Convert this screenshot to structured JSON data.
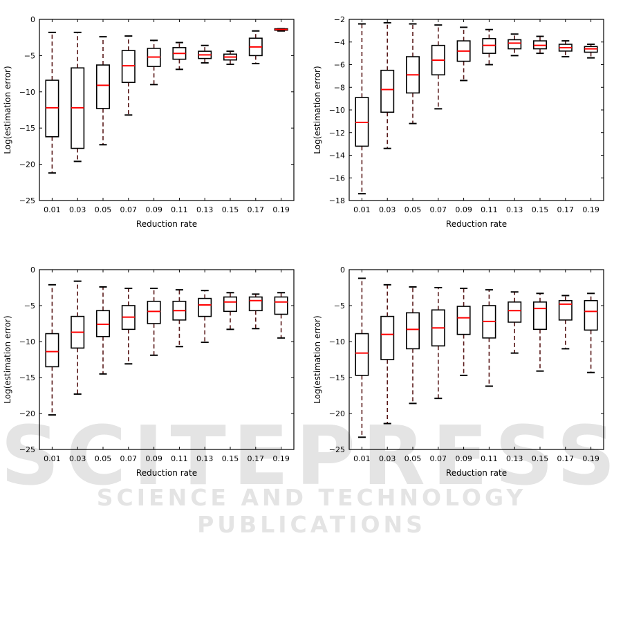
{
  "watermark": {
    "main": "SCITEPRESS",
    "sub": "SCIENCE AND TECHNOLOGY PUBLICATIONS"
  },
  "colors": {
    "box": "#000000",
    "median": "#ff0000",
    "whisker": "#5a1a1a"
  },
  "chart_data": [
    {
      "type": "box",
      "xlabel": "Reduction rate",
      "ylabel": "Log(estimation error)",
      "ylim": [
        -25,
        0
      ],
      "yticks": [
        0,
        -5,
        -10,
        -15,
        -20,
        -25
      ],
      "categories": [
        "0.01",
        "0.03",
        "0.05",
        "0.07",
        "0.09",
        "0.11",
        "0.13",
        "0.15",
        "0.17",
        "0.19"
      ],
      "boxes": [
        {
          "min": -21.2,
          "q1": -16.2,
          "median": -12.2,
          "q3": -8.4,
          "max": -1.8
        },
        {
          "min": -19.6,
          "q1": -17.8,
          "median": -12.2,
          "q3": -6.7,
          "max": -1.8
        },
        {
          "min": -17.3,
          "q1": -12.3,
          "median": -9.1,
          "q3": -6.3,
          "max": -2.4
        },
        {
          "min": -13.2,
          "q1": -8.7,
          "median": -6.4,
          "q3": -4.3,
          "max": -2.3
        },
        {
          "min": -9.0,
          "q1": -6.5,
          "median": -5.2,
          "q3": -4.0,
          "max": -2.9
        },
        {
          "min": -6.9,
          "q1": -5.5,
          "median": -4.7,
          "q3": -3.9,
          "max": -3.2
        },
        {
          "min": -6.0,
          "q1": -5.4,
          "median": -4.9,
          "q3": -4.4,
          "max": -3.6
        },
        {
          "min": -6.2,
          "q1": -5.6,
          "median": -5.2,
          "q3": -4.8,
          "max": -4.4
        },
        {
          "min": -6.1,
          "q1": -5.0,
          "median": -3.8,
          "q3": -2.6,
          "max": -1.6
        },
        {
          "min": -1.6,
          "q1": -1.5,
          "median": -1.4,
          "q3": -1.3,
          "max": -1.3
        }
      ]
    },
    {
      "type": "box",
      "xlabel": "Reduction rate",
      "ylabel": "Log(estimation error)",
      "ylim": [
        -18,
        -2
      ],
      "yticks": [
        -2,
        -4,
        -6,
        -8,
        -10,
        -12,
        -14,
        -16,
        -18
      ],
      "categories": [
        "0.01",
        "0.03",
        "0.05",
        "0.07",
        "0.09",
        "0.11",
        "0.13",
        "0.15",
        "0.17",
        "0.19"
      ],
      "boxes": [
        {
          "min": -17.4,
          "q1": -13.2,
          "median": -11.1,
          "q3": -8.9,
          "max": -2.4
        },
        {
          "min": -13.4,
          "q1": -10.2,
          "median": -8.2,
          "q3": -6.5,
          "max": -2.3
        },
        {
          "min": -11.2,
          "q1": -8.5,
          "median": -6.9,
          "q3": -5.3,
          "max": -2.4
        },
        {
          "min": -9.9,
          "q1": -6.9,
          "median": -5.6,
          "q3": -4.3,
          "max": -2.5
        },
        {
          "min": -7.4,
          "q1": -5.7,
          "median": -4.8,
          "q3": -3.9,
          "max": -2.7
        },
        {
          "min": -6.0,
          "q1": -5.0,
          "median": -4.3,
          "q3": -3.7,
          "max": -2.9
        },
        {
          "min": -5.2,
          "q1": -4.6,
          "median": -4.1,
          "q3": -3.8,
          "max": -3.3
        },
        {
          "min": -5.0,
          "q1": -4.6,
          "median": -4.3,
          "q3": -3.9,
          "max": -3.5
        },
        {
          "min": -5.3,
          "q1": -4.8,
          "median": -4.5,
          "q3": -4.2,
          "max": -3.9
        },
        {
          "min": -5.4,
          "q1": -4.9,
          "median": -4.6,
          "q3": -4.4,
          "max": -4.2
        }
      ]
    },
    {
      "type": "box",
      "xlabel": "Reduction rate",
      "ylabel": "Log(estimation error)",
      "ylim": [
        -25,
        0
      ],
      "yticks": [
        0,
        -5,
        -10,
        -15,
        -20,
        -25
      ],
      "categories": [
        "0.01",
        "0.03",
        "0.05",
        "0.07",
        "0.09",
        "0.11",
        "0.13",
        "0.15",
        "0.17",
        "0.19"
      ],
      "boxes": [
        {
          "min": -20.2,
          "q1": -13.5,
          "median": -11.4,
          "q3": -8.9,
          "max": -2.1
        },
        {
          "min": -17.3,
          "q1": -10.9,
          "median": -8.7,
          "q3": -6.5,
          "max": -1.6
        },
        {
          "min": -14.5,
          "q1": -9.3,
          "median": -7.6,
          "q3": -5.7,
          "max": -2.4
        },
        {
          "min": -13.1,
          "q1": -8.3,
          "median": -6.6,
          "q3": -5.0,
          "max": -2.6
        },
        {
          "min": -11.9,
          "q1": -7.5,
          "median": -5.8,
          "q3": -4.4,
          "max": -2.6
        },
        {
          "min": -10.7,
          "q1": -7.0,
          "median": -5.7,
          "q3": -4.4,
          "max": -2.8
        },
        {
          "min": -10.1,
          "q1": -6.5,
          "median": -4.9,
          "q3": -4.0,
          "max": -2.9
        },
        {
          "min": -8.3,
          "q1": -5.8,
          "median": -4.5,
          "q3": -3.8,
          "max": -3.2
        },
        {
          "min": -8.2,
          "q1": -5.7,
          "median": -4.3,
          "q3": -3.8,
          "max": -3.4
        },
        {
          "min": -9.5,
          "q1": -6.2,
          "median": -4.5,
          "q3": -3.8,
          "max": -3.2
        }
      ]
    },
    {
      "type": "box",
      "xlabel": "Reduction rate",
      "ylabel": "Log(estimation error)",
      "ylim": [
        -25,
        0
      ],
      "yticks": [
        0,
        -5,
        -10,
        -15,
        -20,
        -25
      ],
      "categories": [
        "0.01",
        "0.03",
        "0.05",
        "0.07",
        "0.09",
        "0.11",
        "0.13",
        "0.15",
        "0.17",
        "0.19"
      ],
      "boxes": [
        {
          "min": -23.3,
          "q1": -14.7,
          "median": -11.6,
          "q3": -8.9,
          "max": -1.2
        },
        {
          "min": -21.4,
          "q1": -12.5,
          "median": -9.0,
          "q3": -6.5,
          "max": -2.1
        },
        {
          "min": -18.6,
          "q1": -11.0,
          "median": -8.3,
          "q3": -6.0,
          "max": -2.4
        },
        {
          "min": -17.9,
          "q1": -10.6,
          "median": -8.1,
          "q3": -5.6,
          "max": -2.5
        },
        {
          "min": -14.7,
          "q1": -9.0,
          "median": -6.7,
          "q3": -5.1,
          "max": -2.6
        },
        {
          "min": -16.2,
          "q1": -9.5,
          "median": -7.2,
          "q3": -5.0,
          "max": -2.8
        },
        {
          "min": -11.6,
          "q1": -7.3,
          "median": -5.7,
          "q3": -4.5,
          "max": -3.1
        },
        {
          "min": -14.1,
          "q1": -8.3,
          "median": -5.4,
          "q3": -4.5,
          "max": -3.3
        },
        {
          "min": -11.0,
          "q1": -7.0,
          "median": -4.8,
          "q3": -4.3,
          "max": -3.6
        },
        {
          "min": -14.3,
          "q1": -8.4,
          "median": -5.8,
          "q3": -4.3,
          "max": -3.3
        }
      ]
    }
  ]
}
